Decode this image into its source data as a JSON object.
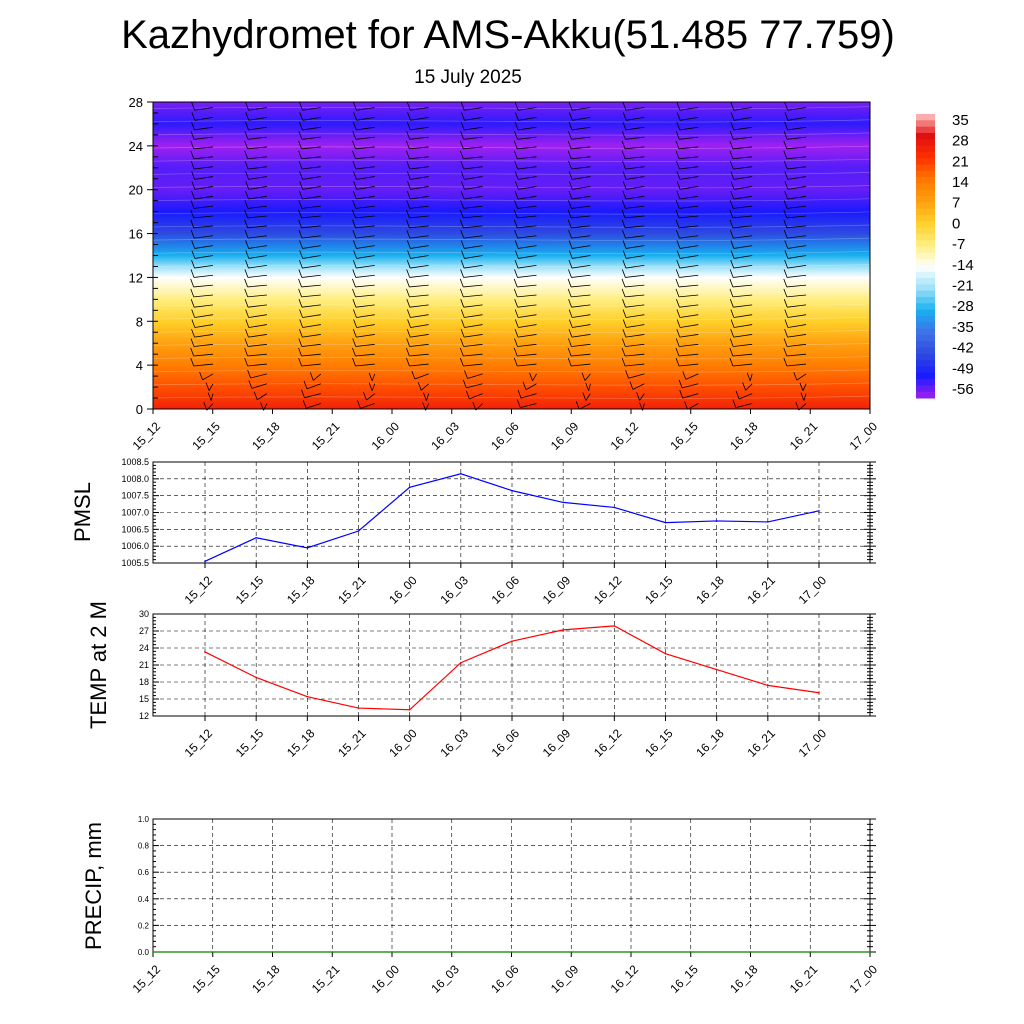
{
  "title": "Kazhydromet for AMS-Akku(51.485 77.759)",
  "subtitle": "15 July 2025",
  "time_labels": [
    "15_12",
    "15_15",
    "15_18",
    "15_21",
    "16_00",
    "16_03",
    "16_06",
    "16_09",
    "16_12",
    "16_15",
    "16_18",
    "16_21",
    "17_00"
  ],
  "colorbar": {
    "labels": [
      "35",
      "28",
      "21",
      "14",
      "7",
      "0",
      "-7",
      "-14",
      "-21",
      "-28",
      "-35",
      "-42",
      "-49",
      "-56"
    ],
    "stops": [
      "#a020f0",
      "#1a1aff",
      "#2e4ae0",
      "#3f72e8",
      "#18b0f0",
      "#9ae0f8",
      "#ffffff",
      "#ffee80",
      "#ffd02a",
      "#ffa010",
      "#ff7800",
      "#ff3000",
      "#e01010",
      "#ffc8c8"
    ]
  },
  "chart_data": [
    {
      "type": "heatmap",
      "title": "",
      "xlabel": "",
      "ylabel": "",
      "x": [
        "15_12",
        "15_15",
        "15_18",
        "15_21",
        "16_00",
        "16_03",
        "16_06",
        "16_09",
        "16_12",
        "16_15",
        "16_18",
        "16_21",
        "17_00"
      ],
      "yticks": [
        0,
        4,
        8,
        12,
        16,
        20,
        24,
        28
      ],
      "ylim": [
        0,
        28
      ],
      "zlim": [
        -56,
        35
      ],
      "profile": {
        "y": [
          0,
          2,
          4,
          6,
          8,
          10,
          12,
          13,
          14,
          16,
          18,
          20,
          22,
          24,
          26,
          28
        ],
        "z": [
          24,
          18,
          13,
          7,
          0,
          -7,
          -14,
          -21,
          -28,
          -42,
          -49,
          -53,
          -52,
          -56,
          -50,
          -54
        ]
      },
      "grid": false
    },
    {
      "type": "line",
      "ylabel": "PMSL",
      "x": [
        "15_12",
        "15_15",
        "15_18",
        "15_21",
        "16_00",
        "16_03",
        "16_06",
        "16_09",
        "16_12",
        "16_15",
        "16_18",
        "16_21",
        "17_00"
      ],
      "series": [
        {
          "values": [
            1005.55,
            1006.25,
            1005.95,
            1006.45,
            1007.75,
            1008.15,
            1007.65,
            1007.3,
            1007.15,
            1006.7,
            1006.75,
            1006.72,
            1007.05
          ],
          "color": "#0000ff"
        }
      ],
      "yticks": [
        "1005.5",
        "1006.0",
        "1006.5",
        "1007.0",
        "1007.5",
        "1008.0",
        "1008.5"
      ],
      "ylim": [
        1005.5,
        1008.5
      ],
      "grid": true
    },
    {
      "type": "line",
      "ylabel": "TEMP at 2 M",
      "x": [
        "15_12",
        "15_15",
        "15_18",
        "15_21",
        "16_00",
        "16_03",
        "16_06",
        "16_09",
        "16_12",
        "16_15",
        "16_18",
        "16_21",
        "17_00"
      ],
      "series": [
        {
          "values": [
            23.3,
            18.8,
            15.4,
            13.4,
            13.1,
            21.4,
            25.2,
            27.2,
            27.9,
            23.0,
            20.2,
            17.4,
            16.1
          ],
          "color": "#ff0000"
        }
      ],
      "yticks": [
        "12",
        "15",
        "18",
        "21",
        "24",
        "27",
        "30"
      ],
      "ylim": [
        12,
        30
      ],
      "grid": true
    },
    {
      "type": "bar",
      "ylabel": "PRECIP, mm",
      "x": [
        "15_12",
        "15_15",
        "15_18",
        "15_21",
        "16_00",
        "16_03",
        "16_06",
        "16_09",
        "16_12",
        "16_15",
        "16_18",
        "16_21",
        "17_00"
      ],
      "series": [
        {
          "values": [
            0,
            0,
            0,
            0,
            0,
            0,
            0,
            0,
            0,
            0,
            0,
            0,
            0
          ],
          "color": "#008000"
        }
      ],
      "yticks": [
        "0.0",
        "0.2",
        "0.4",
        "0.6",
        "0.8",
        "1.0"
      ],
      "ylim": [
        0,
        1
      ],
      "grid": true
    }
  ]
}
